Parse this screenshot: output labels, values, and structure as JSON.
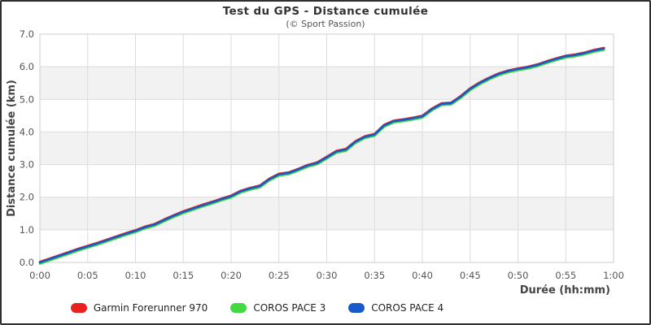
{
  "chart_data": {
    "type": "line",
    "title": "Test du GPS - Distance cumulée",
    "subtitle": "(© Sport Passion)",
    "xlabel": "Durée (hh:mm)",
    "ylabel": "Distance cumulée (km)",
    "xlim_minutes": [
      0,
      60
    ],
    "ylim": [
      0,
      7
    ],
    "x_tick_labels": [
      "0:00",
      "0:05",
      "0:10",
      "0:15",
      "0:20",
      "0:25",
      "0:30",
      "0:35",
      "0:40",
      "0:45",
      "0:50",
      "0:55",
      "1:00"
    ],
    "x_tick_minutes": [
      0,
      5,
      10,
      15,
      20,
      25,
      30,
      35,
      40,
      45,
      50,
      55,
      60
    ],
    "y_tick_labels": [
      "0.0",
      "1.0",
      "2.0",
      "3.0",
      "4.0",
      "5.0",
      "6.0",
      "7.0"
    ],
    "y_tick_values": [
      0,
      1,
      2,
      3,
      4,
      5,
      6,
      7
    ],
    "grid": true,
    "alternating_bands": true,
    "band_color": "#f2f2f2",
    "gridline_color": "#dcdcdc",
    "legend_position": "bottom",
    "x_minutes": [
      0,
      1,
      2,
      3,
      4,
      5,
      6,
      7,
      8,
      9,
      10,
      11,
      12,
      13,
      14,
      15,
      16,
      17,
      18,
      19,
      20,
      21,
      22,
      23,
      24,
      25,
      26,
      27,
      28,
      29,
      30,
      31,
      32,
      33,
      34,
      35,
      36,
      37,
      38,
      39,
      40,
      41,
      42,
      43,
      44,
      45,
      46,
      47,
      48,
      49,
      50,
      51,
      52,
      53,
      54,
      55,
      56,
      57,
      58,
      59
    ],
    "series": [
      {
        "name": "Garmin Forerunner 970",
        "color": "#e8211d",
        "values_km": [
          0.0,
          0.1,
          0.2,
          0.3,
          0.4,
          0.49,
          0.58,
          0.68,
          0.78,
          0.88,
          0.97,
          1.08,
          1.16,
          1.3,
          1.43,
          1.55,
          1.65,
          1.75,
          1.84,
          1.94,
          2.03,
          2.18,
          2.27,
          2.34,
          2.55,
          2.7,
          2.74,
          2.85,
          2.97,
          3.05,
          3.22,
          3.4,
          3.46,
          3.7,
          3.85,
          3.92,
          4.2,
          4.33,
          4.37,
          4.42,
          4.48,
          4.7,
          4.86,
          4.88,
          5.08,
          5.32,
          5.5,
          5.65,
          5.78,
          5.87,
          5.93,
          5.98,
          6.05,
          6.15,
          6.24,
          6.32,
          6.36,
          6.42,
          6.5,
          6.56
        ]
      },
      {
        "name": "COROS PACE 3",
        "color": "#43d943",
        "values_km": [
          0.0,
          0.1,
          0.2,
          0.3,
          0.4,
          0.49,
          0.58,
          0.68,
          0.78,
          0.88,
          0.97,
          1.08,
          1.16,
          1.3,
          1.43,
          1.55,
          1.65,
          1.75,
          1.84,
          1.94,
          2.03,
          2.18,
          2.27,
          2.34,
          2.55,
          2.7,
          2.74,
          2.85,
          2.97,
          3.05,
          3.22,
          3.4,
          3.46,
          3.7,
          3.85,
          3.92,
          4.2,
          4.33,
          4.37,
          4.42,
          4.48,
          4.7,
          4.86,
          4.88,
          5.08,
          5.32,
          5.5,
          5.65,
          5.78,
          5.87,
          5.93,
          5.98,
          6.05,
          6.15,
          6.24,
          6.32,
          6.36,
          6.42,
          6.5,
          6.56
        ]
      },
      {
        "name": "COROS PACE 4",
        "color": "#1859c9",
        "values_km": [
          0.0,
          0.1,
          0.2,
          0.3,
          0.4,
          0.49,
          0.58,
          0.68,
          0.78,
          0.88,
          0.97,
          1.08,
          1.16,
          1.3,
          1.43,
          1.55,
          1.65,
          1.75,
          1.84,
          1.94,
          2.03,
          2.18,
          2.27,
          2.34,
          2.55,
          2.7,
          2.74,
          2.85,
          2.97,
          3.05,
          3.22,
          3.4,
          3.46,
          3.7,
          3.85,
          3.92,
          4.2,
          4.33,
          4.37,
          4.42,
          4.48,
          4.7,
          4.86,
          4.88,
          5.08,
          5.32,
          5.5,
          5.65,
          5.78,
          5.87,
          5.93,
          5.98,
          6.05,
          6.15,
          6.24,
          6.32,
          6.36,
          6.42,
          6.5,
          6.56
        ]
      }
    ]
  }
}
